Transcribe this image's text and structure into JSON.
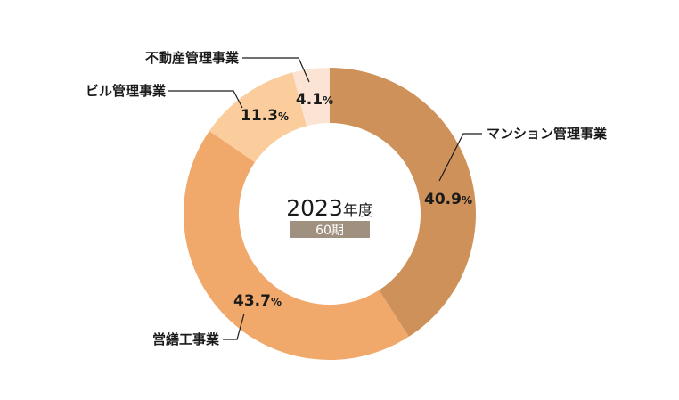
{
  "chart_data": {
    "type": "pie",
    "center": {
      "year": "2023",
      "year_unit": "年度",
      "period": "60期",
      "period_bg": "#a09080"
    },
    "slices": [
      {
        "label": "マンション管理事業",
        "value": 40.9,
        "color": "#cf915a"
      },
      {
        "label": "営繕工事業",
        "value": 43.7,
        "color": "#f0a96a"
      },
      {
        "label": "ビル管理事業",
        "value": 11.3,
        "color": "#fbcc9c"
      },
      {
        "label": "不動産管理事業",
        "value": 4.1,
        "color": "#fbe4d4"
      }
    ],
    "percent_symbol": "%"
  }
}
